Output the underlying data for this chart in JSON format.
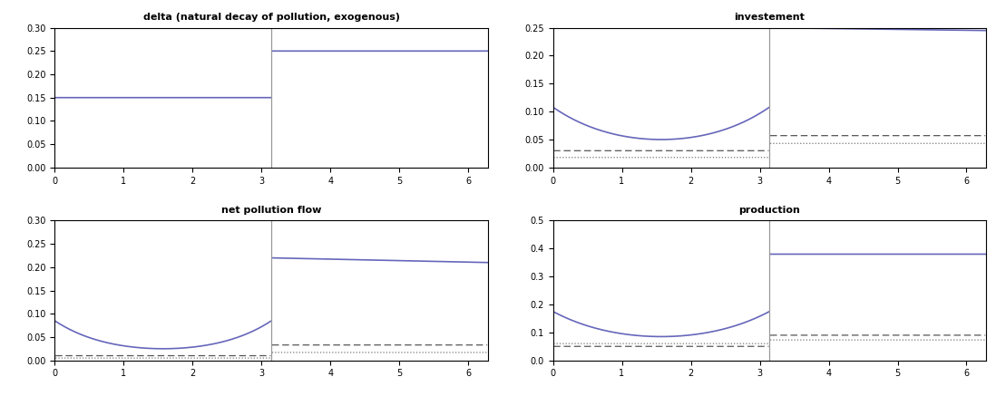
{
  "title_tl": "delta (natural decay of pollution, exogenous)",
  "title_tr": "investement",
  "title_bl": "net pollution flow",
  "title_br": "production",
  "pi": 3.14159265358979,
  "x_max": 6.283185307,
  "delta1": 0.15,
  "delta2": 0.25,
  "ylim_tl": [
    0,
    0.3
  ],
  "ylim_tr": [
    0,
    0.25
  ],
  "ylim_bl": [
    0,
    0.3
  ],
  "ylim_br": [
    0,
    0.5
  ],
  "line_color_solid": "#6666bb",
  "line_color_dash": "#555555",
  "line_color_dot": "#777777",
  "vline_color": "#999999",
  "n_points": 2000,
  "title_fontsize": 8,
  "tick_fontsize": 7
}
